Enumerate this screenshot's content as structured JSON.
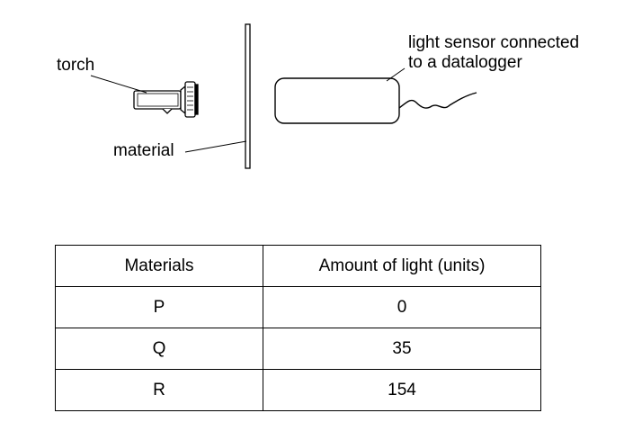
{
  "diagram": {
    "labels": {
      "torch": "torch",
      "material": "material",
      "sensor_line1": "light sensor connected",
      "sensor_line2": "to a datalogger"
    }
  },
  "table": {
    "headers": [
      "Materials",
      "Amount of light (units)"
    ],
    "rows": [
      [
        "P",
        "0"
      ],
      [
        "Q",
        "35"
      ],
      [
        "R",
        "154"
      ]
    ]
  }
}
